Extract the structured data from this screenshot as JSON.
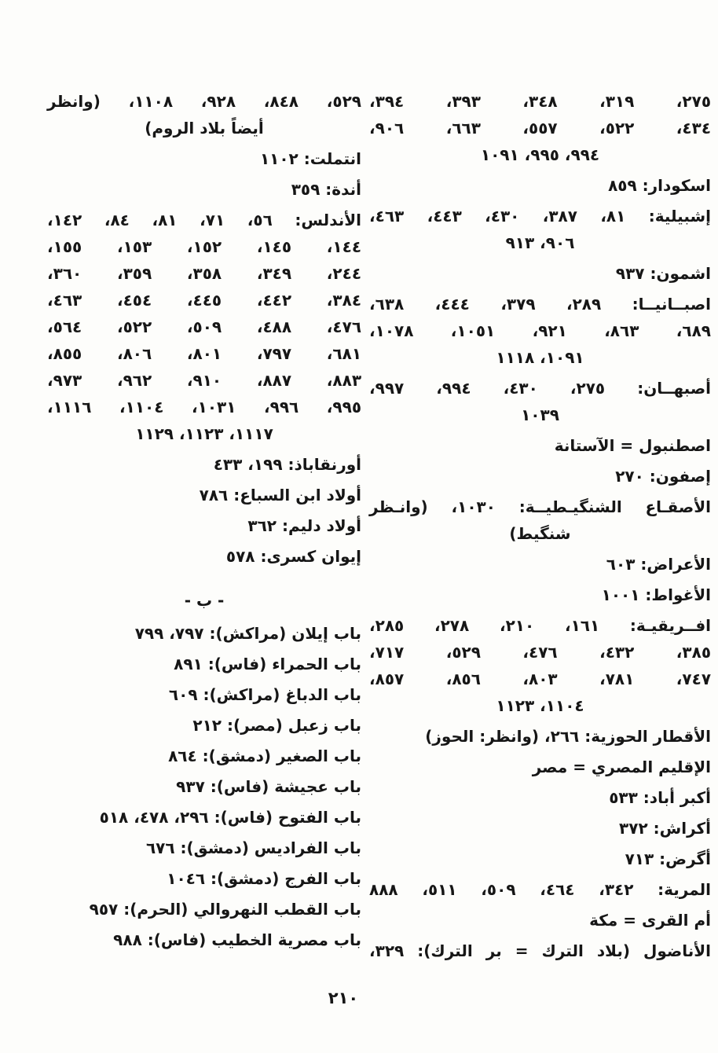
{
  "page": {
    "footer_page_number": "٢١٠"
  },
  "colors": {
    "paper": "#fdfdfb",
    "ink": "#161616"
  },
  "index": {
    "right_column": {
      "lines": [
        {
          "text": "٢٧٥، ٣١٩، ٣٤٨، ٣٩٣، ٣٩٤،",
          "align": "justify"
        },
        {
          "text": "٤٣٤، ٥٢٢، ٥٥٧، ٦٦٣، ٩٠٦،",
          "align": "justify"
        },
        {
          "text": "٩٩٤، ٩٩٥، ١٠٩١",
          "align": "center"
        },
        {
          "text": "اسكودار: ٨٥٩",
          "align": "right",
          "entry": true
        },
        {
          "text": "إشبيلية: ٨١، ٣٨٧، ٤٣٠، ٤٤٣، ٤٦٣،",
          "align": "justify",
          "entry": true
        },
        {
          "text": "٩٠٦، ٩١٣",
          "align": "center"
        },
        {
          "text": "اشمون: ٩٣٧",
          "align": "right",
          "entry": true
        },
        {
          "text": "اصبــانيــا: ٢٨٩، ٣٧٩، ٤٤٤، ٦٣٨،",
          "align": "justify",
          "entry": true
        },
        {
          "text": "٦٨٩، ٨٦٣، ٩٢١، ١٠٥١، ١٠٧٨،",
          "align": "justify"
        },
        {
          "text": "١٠٩١، ١١١٨",
          "align": "center"
        },
        {
          "text": "أصبهــان: ٢٧٥، ٤٣٠، ٩٩٤، ٩٩٧،",
          "align": "justify",
          "entry": true
        },
        {
          "text": "١٠٣٩",
          "align": "center"
        },
        {
          "text": "اصطنبول = الآستانة",
          "align": "right",
          "entry": true
        },
        {
          "text": "إصفون: ٢٧٠",
          "align": "right",
          "entry": true
        },
        {
          "text": "الأصقـاع الشنگيـطيــة: ١٠٣٠، (وانـظر",
          "align": "justify",
          "entry": true
        },
        {
          "text": "شنگيط)",
          "align": "center"
        },
        {
          "text": "الأعراض: ٦٠٣",
          "align": "right",
          "entry": true
        },
        {
          "text": "الأغواط: ١٠٠١",
          "align": "right",
          "entry": true
        },
        {
          "text": "افــريقيـة: ١٦١، ٢١٠، ٢٧٨، ٢٨٥،",
          "align": "justify",
          "entry": true
        },
        {
          "text": "٣٨٥، ٤٣٢، ٤٧٦، ٥٢٩، ٧١٧،",
          "align": "justify"
        },
        {
          "text": "٧٤٧، ٧٨١، ٨٠٣، ٨٥٦، ٨٥٧،",
          "align": "justify"
        },
        {
          "text": "١١٠٤، ١١٢٣",
          "align": "center"
        },
        {
          "text": "الأقطار الحوزية: ٢٦٦، (وانظر: الحوز)",
          "align": "right",
          "entry": true
        },
        {
          "text": "الإقليم المصري = مصر",
          "align": "right",
          "entry": true
        },
        {
          "text": "أكبر أباد: ٥٣٣",
          "align": "right",
          "entry": true
        },
        {
          "text": "أكراش: ٣٧٢",
          "align": "right",
          "entry": true
        },
        {
          "text": "أگرض: ٧١٣",
          "align": "right",
          "entry": true
        },
        {
          "text": "المرية: ٣٤٢، ٤٦٤، ٥٠٩، ٥١١، ٨٨٨",
          "align": "justify",
          "entry": true
        },
        {
          "text": "أم القرى = مكة",
          "align": "right",
          "entry": true
        },
        {
          "text": "الأناضول (بلاد الترك = بر الترك): ٣٢٩،",
          "align": "justify",
          "entry": true
        }
      ]
    },
    "left_column": {
      "lines": [
        {
          "text": "٥٢٩، ٨٤٨، ٩٢٨، ١١٠٨، (وانظر",
          "align": "justify"
        },
        {
          "text": "أيضاً بلاد الروم)",
          "align": "center"
        },
        {
          "text": "انتملت: ١١٠٢",
          "align": "right",
          "entry": true
        },
        {
          "text": "أندة: ٣٥٩",
          "align": "right",
          "entry": true
        },
        {
          "text": "الأندلس: ٥٦، ٧١، ٨١، ٨٤، ١٤٢،",
          "align": "justify",
          "entry": true
        },
        {
          "text": "١٤٤، ١٤٥، ١٥٢، ١٥٣، ١٥٥،",
          "align": "justify"
        },
        {
          "text": "٢٤٤، ٣٤٩، ٣٥٨، ٣٥٩، ٣٦٠،",
          "align": "justify"
        },
        {
          "text": "٣٨٤، ٤٤٢، ٤٤٥، ٤٥٤، ٤٦٣،",
          "align": "justify"
        },
        {
          "text": "٤٧٦، ٤٨٨، ٥٠٩، ٥٢٢، ٥٦٤،",
          "align": "justify"
        },
        {
          "text": "٦٨١، ٧٩٧، ٨٠١، ٨٠٦، ٨٥٥،",
          "align": "justify"
        },
        {
          "text": "٨٨٣، ٨٨٧، ٩١٠، ٩٦٢، ٩٧٣،",
          "align": "justify"
        },
        {
          "text": "٩٩٥، ٩٩٦، ١٠٣١، ١١٠٤، ١١١٦،",
          "align": "justify"
        },
        {
          "text": "١١١٧، ١١٢٣، ١١٢٩",
          "align": "center"
        },
        {
          "text": "أورنقاباذ: ١٩٩، ٤٣٣",
          "align": "right",
          "entry": true
        },
        {
          "text": "أولاد ابن السباع: ٧٨٦",
          "align": "right",
          "entry": true
        },
        {
          "text": "أولاد دليم: ٣٦٢",
          "align": "right",
          "entry": true
        },
        {
          "text": "إيوان كسرى: ٥٧٨",
          "align": "right",
          "entry": true
        },
        {
          "text": "- ب -",
          "align": "center",
          "type": "header"
        },
        {
          "text": "باب إيلان (مراكش): ٧٩٧، ٧٩٩",
          "align": "right",
          "entry": true
        },
        {
          "text": "باب الحمراء (فاس): ٨٩١",
          "align": "right",
          "entry": true
        },
        {
          "text": "باب الدباغ (مراكش): ٦٠٩",
          "align": "right",
          "entry": true
        },
        {
          "text": "باب زعبل (مصر): ٢١٢",
          "align": "right",
          "entry": true
        },
        {
          "text": "باب الصغير (دمشق): ٨٦٤",
          "align": "right",
          "entry": true
        },
        {
          "text": "باب عجيشة (فاس): ٩٣٧",
          "align": "right",
          "entry": true
        },
        {
          "text": "باب الفتوح (فاس): ٢٩٦، ٤٧٨، ٥١٨",
          "align": "right",
          "entry": true
        },
        {
          "text": "باب الفراديس (دمشق): ٦٧٦",
          "align": "right",
          "entry": true
        },
        {
          "text": "باب الفرج (دمشق): ١٠٤٦",
          "align": "right",
          "entry": true
        },
        {
          "text": "باب القطب النهروالي (الحرم): ٩٥٧",
          "align": "right",
          "entry": true
        },
        {
          "text": "باب مصرية الخطيب (فاس): ٩٨٨",
          "align": "right",
          "entry": true
        }
      ]
    }
  }
}
